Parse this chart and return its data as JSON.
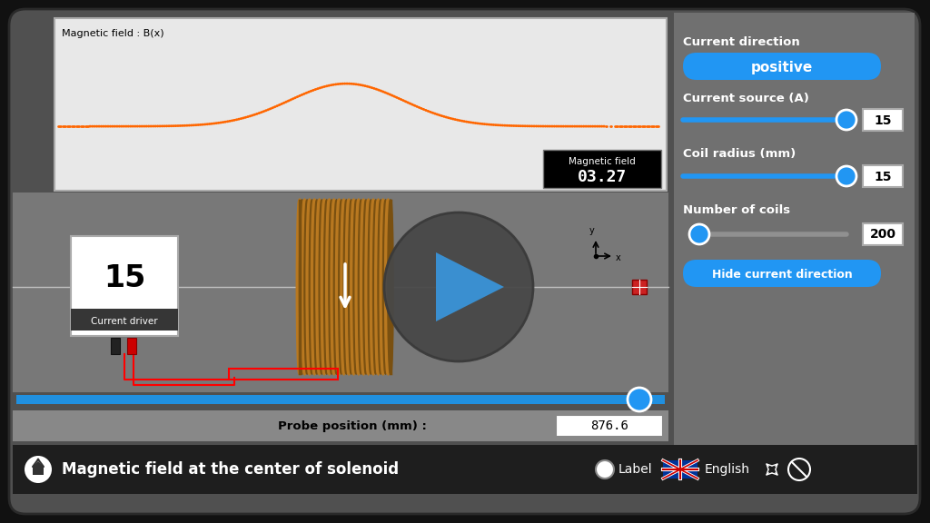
{
  "bg_outer": "#111111",
  "bg_inner": "#606060",
  "bg_sim": "#808080",
  "bg_plot": "#e8e8e8",
  "bg_bottom_bar": "#1e1e1e",
  "title_text": "Magnetic field at the center of solenoid",
  "plot_title": "Magnetic field : B(x)",
  "mag_field_label": "Magnetic field",
  "mag_field_value": "03.27",
  "current_direction_label": "Current direction",
  "positive_btn": "positive",
  "current_source_label": "Current source (A)",
  "current_source_value": "15",
  "coil_radius_label": "Coil radius (mm)",
  "coil_radius_value": "15",
  "num_coils_label": "Number of coils",
  "num_coils_value": "200",
  "hide_btn": "Hide current direction",
  "probe_label": "Probe position (mm) :",
  "probe_value": "876.6",
  "current_driver_label": "Current driver",
  "current_driver_value": "15",
  "label_text": "Label",
  "english_text": "English",
  "btn_color": "#2196F3",
  "panel_color": "#707070",
  "plot_line_color": "#FF6600",
  "solenoid_color": "#B87820",
  "solenoid_dark": "#7A5010",
  "solenoid_mid": "#9A6518",
  "play_circle_color": "#4a4a4a",
  "play_arrow_color": "#3a8fd0",
  "probe_track_color": "#2196F3",
  "wire_color": "#ff0000",
  "black_plug": "#222222",
  "red_plug": "#cc0000"
}
